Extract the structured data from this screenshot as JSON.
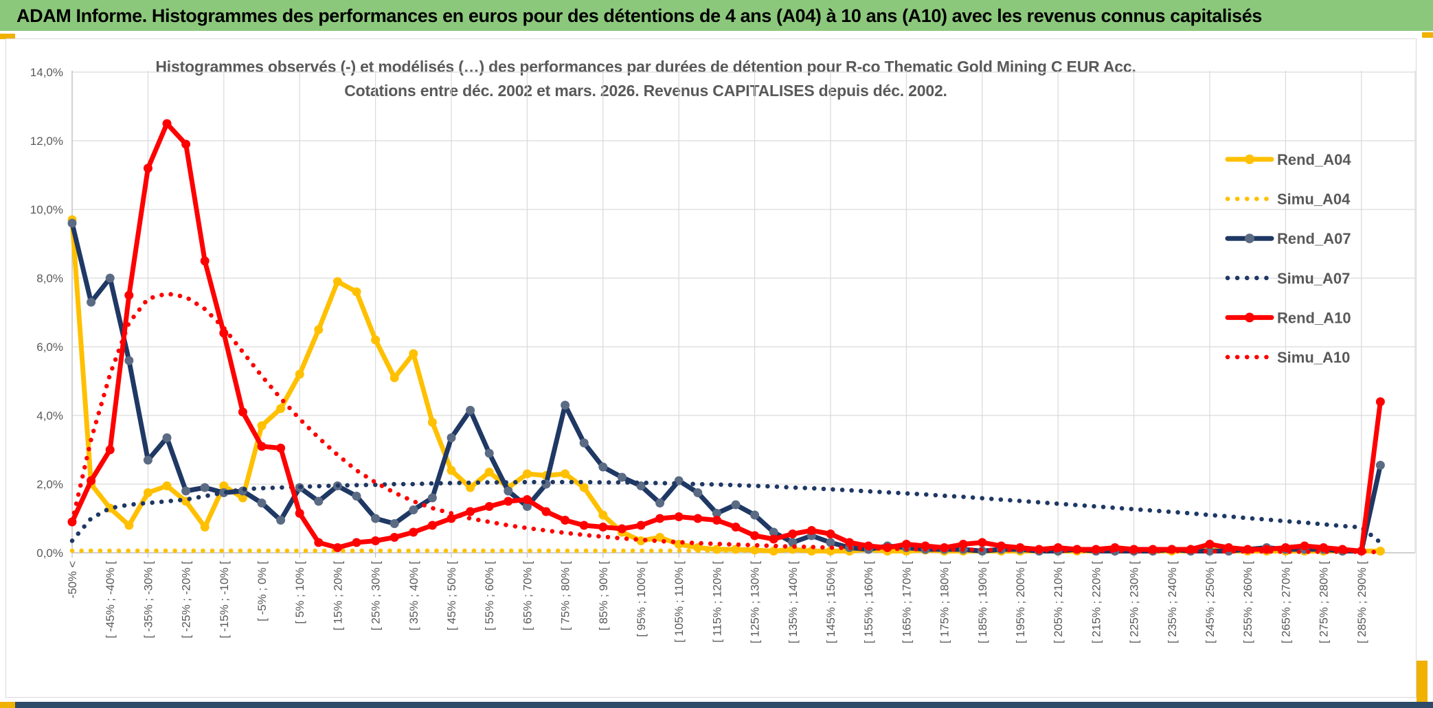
{
  "header": {
    "title": "ADAM Informe. Histogrammes des performances en euros pour des détentions de 4 ans (A04) à 10 ans (A10) avec les revenus connus capitalisés",
    "bg_color": "#8CC87C"
  },
  "accents": {
    "gold": "#F0B100",
    "bottom_band": "#2D4A68"
  },
  "chart_data": {
    "type": "line",
    "title_line1": "Histogrammes observés (-) et modélisés (…) des performances par durées de détention pour R-co Thematic Gold Mining C EUR Acc.",
    "title_line2": "Cotations entre déc. 2002 et mars. 2026. Revenus CAPITALISES depuis déc. 2002.",
    "ylim": [
      0,
      14
    ],
    "ytick_step_pct": 2,
    "yticks": [
      "0,0%",
      "2,0%",
      "4,0%",
      "6,0%",
      "8,0%",
      "10,0%",
      "12,0%",
      "14,0%"
    ],
    "grid": true,
    "legend_position": "right-inside",
    "text_color": "#595959",
    "grid_color": "#D9D9D9",
    "axis_color": "#BFBFBF",
    "categories": [
      "-50% <",
      "",
      "[ -45% ; -40% [",
      "",
      "[ -35% ; -30% [",
      "",
      "[ -25% ; -20% [",
      "",
      "[ -15% ; -10% [",
      "",
      "[ -5% ; 0% [",
      "",
      "[ 5% ; 10% [",
      "",
      "[ 15% ; 20% [",
      "",
      "[ 25% ; 30% [",
      "",
      "[ 35% ; 40% [",
      "",
      "[ 45% ; 50% [",
      "",
      "[ 55% ; 60% [",
      "",
      "[ 65% ; 70% [",
      "",
      "[ 75% ; 80% [",
      "",
      "[ 85% ; 90% [",
      "",
      "[ 95% ; 100% [",
      "",
      "[ 105% ; 110% [",
      "",
      "[ 115% ; 120% [",
      "",
      "[ 125% ; 130% [",
      "",
      "[ 135% ; 140% [",
      "",
      "[ 145% ; 150% [",
      "",
      "[ 155% ; 160% [",
      "",
      "[ 165% ; 170% [",
      "",
      "[ 175% ; 180% [",
      "",
      "[ 185% ; 190% [",
      "",
      "[ 195% ; 200% [",
      "",
      "[ 205% ; 210% [",
      "",
      "[ 215% ; 220% [",
      "",
      "[ 225% ; 230% [",
      "",
      "[ 235% ; 240% [",
      "",
      "[ 245% ; 250% [",
      "",
      "[ 255% ; 260% [",
      "",
      "[ 265% ; 270% [",
      "",
      "[ 275% ; 280% [",
      "",
      "[ 285% ; 290% [",
      ""
    ],
    "series": [
      {
        "name": "Rend_A04",
        "style": "solid",
        "color": "#FFC000",
        "marker_color": "#FFC000",
        "values": [
          9.7,
          2.0,
          1.3,
          0.8,
          1.75,
          1.95,
          1.5,
          0.75,
          1.95,
          1.6,
          3.7,
          4.2,
          5.2,
          6.5,
          7.9,
          7.6,
          6.2,
          5.1,
          5.8,
          3.8,
          2.4,
          1.9,
          2.35,
          1.9,
          2.3,
          2.25,
          2.3,
          1.9,
          1.1,
          0.6,
          0.35,
          0.45,
          0.25,
          0.15,
          0.1,
          0.1,
          0.08,
          0.05,
          0.1,
          0.05,
          0.05,
          0.05,
          0.1,
          0.05,
          0.05,
          0.08,
          0.05,
          0.05,
          0.05,
          0.05,
          0.05,
          0.05,
          0.05,
          0.05,
          0.05,
          0.05,
          0.05,
          0.05,
          0.05,
          0.05,
          0.08,
          0.05,
          0.05,
          0.05,
          0.05,
          0.05,
          0.05,
          0.05,
          0.05,
          0.05
        ]
      },
      {
        "name": "Simu_A04",
        "style": "dotted",
        "color": "#FFC000",
        "values": [
          0.06,
          0.06,
          0.06,
          0.06,
          0.06,
          0.06,
          0.06,
          0.06,
          0.06,
          0.06,
          0.06,
          0.06,
          0.06,
          0.06,
          0.06,
          0.06,
          0.06,
          0.06,
          0.06,
          0.06,
          0.06,
          0.06,
          0.06,
          0.06,
          0.06,
          0.06,
          0.06,
          0.06,
          0.06,
          0.06,
          0.06,
          0.06,
          0.06,
          0.06,
          0.06,
          0.06,
          0.06,
          0.06,
          0.06,
          0.06,
          0.06,
          0.06,
          0.06,
          0.06,
          0.06,
          0.06,
          0.06,
          0.06,
          0.06,
          0.06,
          0.06,
          0.06,
          0.06,
          0.06,
          0.06,
          0.06,
          0.06,
          0.06,
          0.06,
          0.06,
          0.06,
          0.06,
          0.06,
          0.06,
          0.06,
          0.06,
          0.06,
          0.06,
          0.06,
          0.06
        ]
      },
      {
        "name": "Rend_A07",
        "style": "solid",
        "color": "#1F3864",
        "marker_color": "#5B6B84",
        "values": [
          9.6,
          7.3,
          8.0,
          5.6,
          2.7,
          3.35,
          1.8,
          1.9,
          1.75,
          1.8,
          1.45,
          0.95,
          1.9,
          1.5,
          1.95,
          1.65,
          1.0,
          0.85,
          1.25,
          1.6,
          3.35,
          4.15,
          2.9,
          1.8,
          1.35,
          2.0,
          4.3,
          3.2,
          2.5,
          2.2,
          1.95,
          1.45,
          2.1,
          1.75,
          1.15,
          1.4,
          1.1,
          0.6,
          0.3,
          0.5,
          0.3,
          0.15,
          0.1,
          0.2,
          0.15,
          0.1,
          0.1,
          0.1,
          0.05,
          0.1,
          0.1,
          0.05,
          0.05,
          0.1,
          0.05,
          0.05,
          0.05,
          0.05,
          0.1,
          0.05,
          0.05,
          0.05,
          0.1,
          0.15,
          0.1,
          0.1,
          0.1,
          0.05,
          0.05,
          2.55
        ]
      },
      {
        "name": "Simu_A07",
        "style": "dotted",
        "color": "#1F3864",
        "values": [
          0.35,
          1.0,
          1.3,
          1.4,
          1.45,
          1.5,
          1.55,
          1.65,
          1.75,
          1.85,
          1.88,
          1.9,
          1.92,
          1.94,
          1.96,
          1.97,
          1.98,
          2.0,
          2.0,
          2.02,
          2.03,
          2.04,
          2.05,
          2.05,
          2.06,
          2.06,
          2.06,
          2.06,
          2.05,
          2.05,
          2.04,
          2.03,
          2.02,
          2.0,
          1.99,
          1.97,
          1.95,
          1.93,
          1.9,
          1.88,
          1.85,
          1.82,
          1.79,
          1.76,
          1.73,
          1.7,
          1.66,
          1.63,
          1.59,
          1.55,
          1.51,
          1.47,
          1.43,
          1.39,
          1.35,
          1.31,
          1.27,
          1.23,
          1.19,
          1.15,
          1.1,
          1.06,
          1.01,
          0.97,
          0.92,
          0.88,
          0.83,
          0.78,
          0.74,
          0.3
        ]
      },
      {
        "name": "Rend_A10",
        "style": "solid",
        "color": "#FF0000",
        "marker_color": "#FF0000",
        "values": [
          0.9,
          2.1,
          3.0,
          7.5,
          11.2,
          12.5,
          11.9,
          8.5,
          6.4,
          4.1,
          3.1,
          3.05,
          1.15,
          0.3,
          0.15,
          0.3,
          0.35,
          0.45,
          0.6,
          0.8,
          1.0,
          1.2,
          1.35,
          1.5,
          1.55,
          1.2,
          0.95,
          0.8,
          0.75,
          0.7,
          0.8,
          1.0,
          1.05,
          1.0,
          0.95,
          0.75,
          0.5,
          0.4,
          0.55,
          0.65,
          0.55,
          0.3,
          0.2,
          0.15,
          0.25,
          0.2,
          0.15,
          0.25,
          0.3,
          0.2,
          0.15,
          0.1,
          0.15,
          0.1,
          0.1,
          0.15,
          0.1,
          0.1,
          0.1,
          0.1,
          0.25,
          0.15,
          0.1,
          0.1,
          0.15,
          0.2,
          0.15,
          0.1,
          0.05,
          4.4
        ]
      },
      {
        "name": "Simu_A10",
        "style": "dotted",
        "color": "#FF0000",
        "values": [
          0.9,
          3.3,
          5.2,
          6.7,
          7.4,
          7.55,
          7.45,
          7.1,
          6.55,
          5.85,
          5.15,
          4.5,
          3.9,
          3.35,
          2.85,
          2.4,
          2.05,
          1.75,
          1.5,
          1.3,
          1.15,
          1.0,
          0.9,
          0.8,
          0.72,
          0.65,
          0.58,
          0.52,
          0.47,
          0.42,
          0.38,
          0.34,
          0.31,
          0.28,
          0.26,
          0.24,
          0.22,
          0.2,
          0.18,
          0.17,
          0.15,
          0.14,
          0.13,
          0.12,
          0.11,
          0.1,
          0.1,
          0.09,
          0.09,
          0.08,
          0.08,
          0.07,
          0.07,
          0.06,
          0.06,
          0.06,
          0.05,
          0.05,
          0.05,
          0.05,
          0.04,
          0.04,
          0.04,
          0.04,
          0.03,
          0.03,
          0.03,
          0.03,
          0.03,
          0.02
        ]
      }
    ]
  }
}
